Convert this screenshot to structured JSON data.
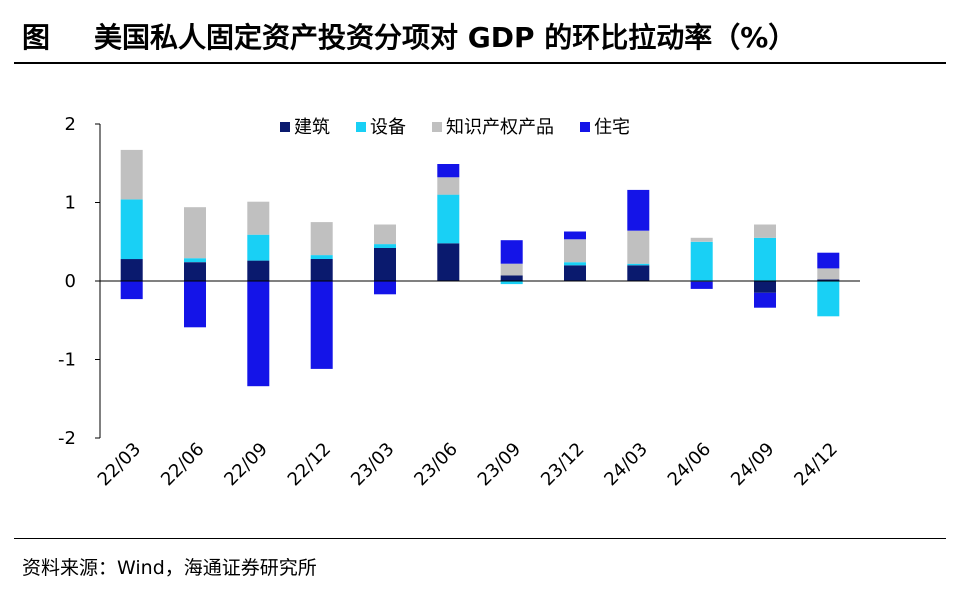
{
  "header": {
    "figure_label": "图",
    "title": "美国私人固定资产投资分项对 GDP 的环比拉动率（%）"
  },
  "source": {
    "text": "资料来源：Wind，海通证券研究所"
  },
  "chart_data": {
    "type": "bar",
    "stacked": true,
    "categories": [
      "22/03",
      "22/06",
      "22/09",
      "22/12",
      "23/03",
      "23/06",
      "23/09",
      "23/12",
      "24/03",
      "24/06",
      "24/09",
      "24/12"
    ],
    "ylim": [
      -2,
      2
    ],
    "yticks": [
      -2,
      -1,
      0,
      1,
      2
    ],
    "legend_position": "top-center",
    "grid": false,
    "series": [
      {
        "name": "建筑",
        "color": "#0a1a6e",
        "values": [
          0.28,
          0.24,
          0.26,
          0.28,
          0.42,
          0.48,
          0.07,
          0.2,
          0.2,
          -0.01,
          -0.15,
          0.02
        ]
      },
      {
        "name": "设备",
        "color": "#19d0f5",
        "values": [
          0.76,
          0.05,
          0.33,
          0.05,
          0.05,
          0.62,
          -0.04,
          0.04,
          0.02,
          0.5,
          0.55,
          -0.45
        ]
      },
      {
        "name": "知识产权产品",
        "color": "#c0c0c0",
        "values": [
          0.63,
          0.65,
          0.42,
          0.42,
          0.25,
          0.22,
          0.15,
          0.29,
          0.42,
          0.05,
          0.17,
          0.14
        ]
      },
      {
        "name": "住宅",
        "color": "#1414e8",
        "values": [
          -0.23,
          -0.59,
          -1.34,
          -1.12,
          -0.17,
          0.17,
          0.3,
          0.1,
          0.52,
          -0.09,
          -0.19,
          0.2
        ]
      }
    ]
  }
}
